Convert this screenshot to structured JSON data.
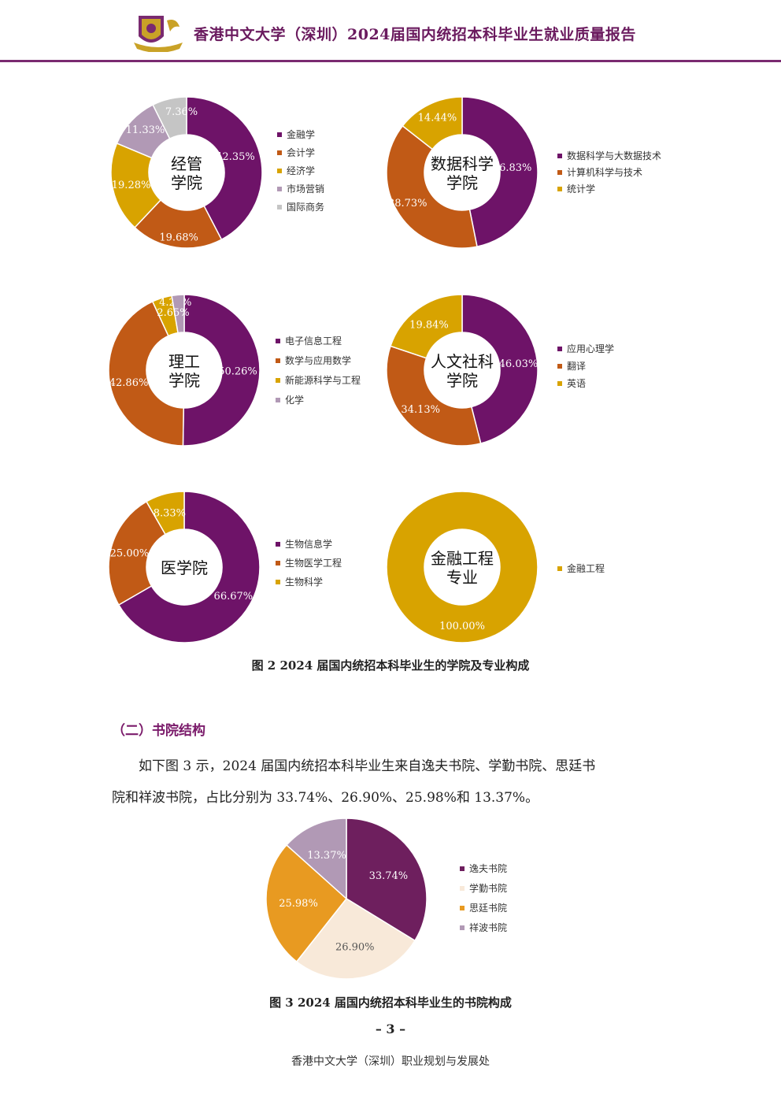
{
  "header": {
    "title": "香港中文大学（深圳）2024届国内统招本科毕业生就业质量报告"
  },
  "colors": {
    "purple": "#6e1368",
    "orange": "#c15a16",
    "gold": "#d8a300",
    "lilac": "#b199b5",
    "gray": "#c5c5c5",
    "cream": "#f8e9d9",
    "amber": "#e89a21",
    "accent": "#7a2a70"
  },
  "chart_data": [
    {
      "type": "pie",
      "title": "经管\n学院",
      "series": [
        {
          "name": "金融学",
          "value": 42.35,
          "label": "42.35%",
          "color": "#6e1368"
        },
        {
          "name": "会计学",
          "value": 19.68,
          "label": "19.68%",
          "color": "#c15a16"
        },
        {
          "name": "经济学",
          "value": 19.28,
          "label": "19.28%",
          "color": "#d8a300"
        },
        {
          "name": "市场营销",
          "value": 11.33,
          "label": "11.33%",
          "color": "#b199b5"
        },
        {
          "name": "国际商务",
          "value": 7.36,
          "label": "7.36%",
          "color": "#c5c5c5"
        }
      ]
    },
    {
      "type": "pie",
      "title": "数据科学\n学院",
      "series": [
        {
          "name": "数据科学与大数据技术",
          "value": 46.83,
          "label": "46.83%",
          "color": "#6e1368"
        },
        {
          "name": "计算机科学与技术",
          "value": 38.73,
          "label": "38.73%",
          "color": "#c15a16"
        },
        {
          "name": "统计学",
          "value": 14.44,
          "label": "14.44%",
          "color": "#d8a300"
        }
      ]
    },
    {
      "type": "pie",
      "title": "理工\n学院",
      "series": [
        {
          "name": "电子信息工程",
          "value": 50.26,
          "label": "50.26%",
          "color": "#6e1368"
        },
        {
          "name": "数学与应用数学",
          "value": 42.86,
          "label": "42.86%",
          "color": "#c15a16"
        },
        {
          "name": "新能源科学与工程",
          "value": 4.23,
          "label": "4.23%",
          "color": "#d8a300"
        },
        {
          "name": "化学",
          "value": 2.65,
          "label": "2.65%",
          "color": "#b199b5"
        }
      ]
    },
    {
      "type": "pie",
      "title": "人文社科\n学院",
      "series": [
        {
          "name": "应用心理学",
          "value": 46.03,
          "label": "46.03%",
          "color": "#6e1368"
        },
        {
          "name": "翻译",
          "value": 34.13,
          "label": "34.13%",
          "color": "#c15a16"
        },
        {
          "name": "英语",
          "value": 19.84,
          "label": "19.84%",
          "color": "#d8a300"
        }
      ]
    },
    {
      "type": "pie",
      "title": "医学院",
      "series": [
        {
          "name": "生物信息学",
          "value": 66.67,
          "label": "66.67%",
          "color": "#6e1368"
        },
        {
          "name": "生物医学工程",
          "value": 25.0,
          "label": "25.00%",
          "color": "#c15a16"
        },
        {
          "name": "生物科学",
          "value": 8.33,
          "label": "8.33%",
          "color": "#d8a300"
        }
      ]
    },
    {
      "type": "pie",
      "title": "金融工程\n专业",
      "series": [
        {
          "name": "金融工程",
          "value": 100.0,
          "label": "100.00%",
          "color": "#d8a300"
        }
      ]
    },
    {
      "type": "pie",
      "title": "",
      "series": [
        {
          "name": "逸夫书院",
          "value": 33.74,
          "label": "33.74%",
          "color": "#6e1f5e"
        },
        {
          "name": "学勤书院",
          "value": 26.9,
          "label": "26.90%",
          "color": "#f8e9d9"
        },
        {
          "name": "思廷书院",
          "value": 25.98,
          "label": "25.98%",
          "color": "#e89a21"
        },
        {
          "name": "祥波书院",
          "value": 13.37,
          "label": "13.37%",
          "color": "#b199b5"
        }
      ]
    }
  ],
  "captions": {
    "fig2": "图 2  2024 届国内统招本科毕业生的学院及专业构成",
    "fig3": "图 3  2024 届国内统招本科毕业生的书院构成"
  },
  "section": {
    "title": "（二）书院结构",
    "para1": "如下图 3 示，2024 届国内统招本科毕业生来自逸夫书院、学勤书院、思廷书",
    "para2": "院和祥波书院，占比分别为 33.74%、26.90%、25.98%和 13.37%。"
  },
  "page_number": "– 3 –",
  "footer": "香港中文大学（深圳）职业规划与发展处"
}
